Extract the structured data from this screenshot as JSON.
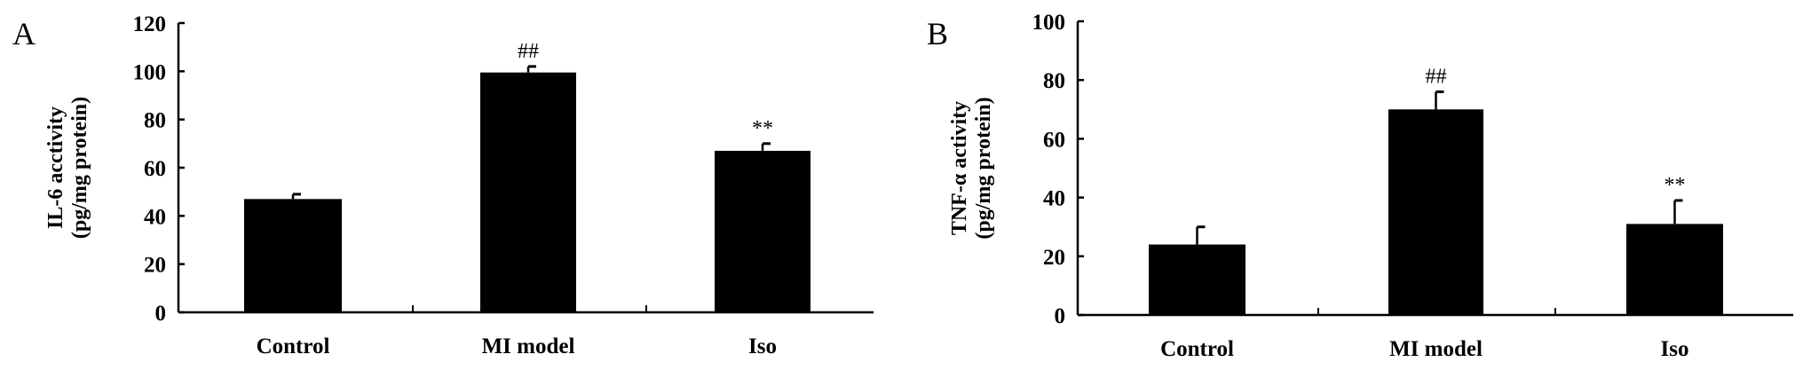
{
  "chart_data": [
    {
      "type": "bar",
      "panel_label": "A",
      "categories": [
        "Control",
        "MI model",
        "Iso"
      ],
      "values": [
        47,
        99.5,
        67
      ],
      "errors": [
        2,
        2.5,
        3
      ],
      "annotations": [
        "",
        "##",
        "**"
      ],
      "ylabel_line1": "IL-6 acctivity",
      "ylabel_line2": "(pg/mg protein)",
      "ylim": [
        0,
        120
      ],
      "yticks": [
        0,
        20,
        40,
        60,
        80,
        100,
        120
      ],
      "bar_color": "#000000",
      "grid": false
    },
    {
      "type": "bar",
      "panel_label": "B",
      "categories": [
        "Control",
        "MI model",
        "Iso"
      ],
      "values": [
        24,
        70,
        31
      ],
      "errors": [
        6,
        6,
        8
      ],
      "annotations": [
        "",
        "##",
        "**"
      ],
      "ylabel_line1": "TNF-α activity",
      "ylabel_line2": "(pg/mg protein)",
      "ylim": [
        0,
        100
      ],
      "yticks": [
        0,
        20,
        40,
        60,
        80,
        100
      ],
      "bar_color": "#000000",
      "grid": false
    }
  ]
}
